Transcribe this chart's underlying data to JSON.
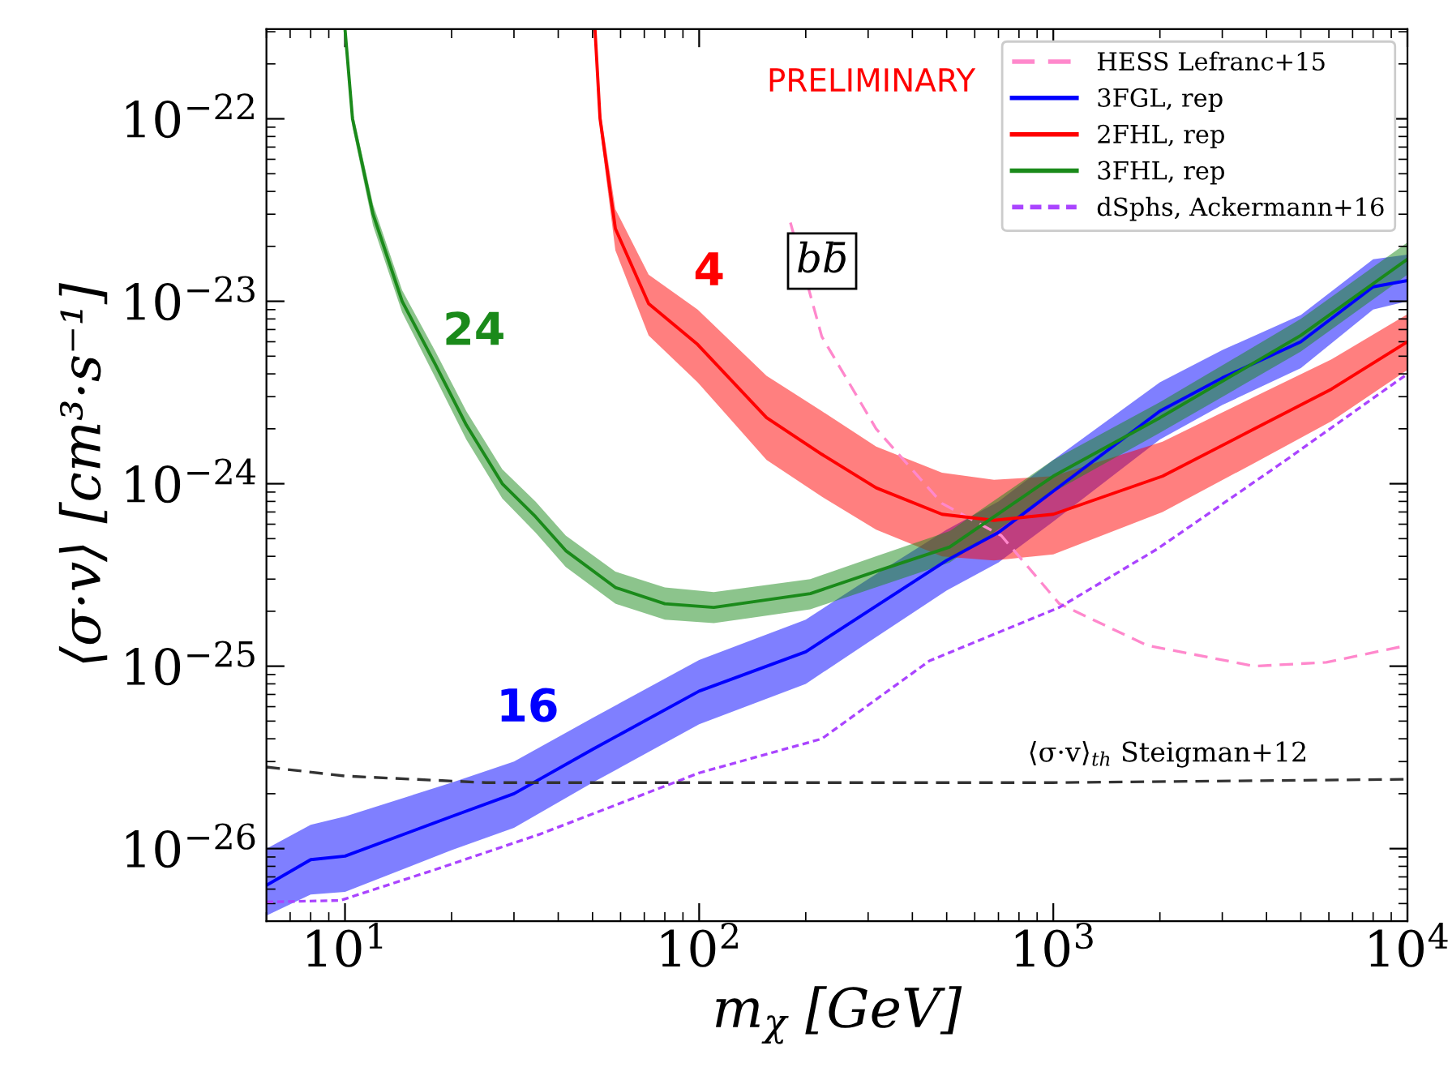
{
  "chart_data": {
    "type": "line",
    "xlabel": "m$_{χ}$ [GeV]",
    "ylabel": "⟨σ·v⟩ [cm³·s⁻¹]",
    "log": "xy",
    "xlim": [
      6,
      10000
    ],
    "ylim": [
      4e-27,
      3.1e-22
    ],
    "xticks": [
      {
        "value": 10,
        "label": "10$^{1}$"
      },
      {
        "value": 100,
        "label": "10$^{2}$"
      },
      {
        "value": 1000,
        "label": "10$^{3}$"
      },
      {
        "value": 10000,
        "label": "10$^{4}$"
      }
    ],
    "yticks": [
      {
        "value": 1e-26,
        "label": "10$^{−26}$"
      },
      {
        "value": 1e-25,
        "label": "10$^{−25}$"
      },
      {
        "value": 1e-24,
        "label": "10$^{−24}$"
      },
      {
        "value": 1e-23,
        "label": "10$^{−23}$"
      },
      {
        "value": 1e-22,
        "label": "10$^{−22}$"
      }
    ],
    "grid": false,
    "legend": "top right",
    "marker": "none",
    "series": [
      {
        "name": "HESS Lefranc+15",
        "color": "#ff88cc",
        "line_style": "dashed",
        "x": [
          181,
          222,
          316,
          485,
          713,
          1040,
          1840,
          3700,
          5900,
          10000
        ],
        "values": [
          2.7e-23,
          6.4e-24,
          2e-24,
          7.8e-25,
          5.2e-25,
          2.2e-25,
          1.3e-25,
          1e-25,
          1.05e-25,
          1.3e-25
        ]
      },
      {
        "name": "3FGL, rep",
        "color": "#0000ff",
        "line_style": "solid",
        "x": [
          6,
          8,
          10,
          20,
          30,
          50,
          100,
          200,
          300,
          500,
          700,
          1000,
          2000,
          3000,
          5000,
          8000,
          10000
        ],
        "values": [
          6.3e-27,
          8.7e-27,
          9.1e-27,
          1.5e-26,
          2e-26,
          3.5e-26,
          7.3e-26,
          1.2e-25,
          2e-25,
          3.8e-25,
          5.4e-25,
          9.1e-25,
          2.5e-24,
          3.8e-24,
          6e-24,
          1.2e-23,
          1.3e-23
        ],
        "upper": [
          1e-26,
          1.35e-26,
          1.5e-26,
          2.3e-26,
          3e-26,
          5.2e-26,
          1.08e-25,
          1.8e-25,
          3e-25,
          5.6e-25,
          8e-25,
          1.35e-24,
          3.6e-24,
          5.4e-24,
          8.4e-24,
          1.7e-23,
          1.8e-23
        ],
        "lower": [
          4.3e-27,
          5.6e-27,
          5.8e-27,
          9.8e-27,
          1.3e-26,
          2.3e-26,
          4.8e-26,
          8e-26,
          1.35e-25,
          2.6e-25,
          3.7e-25,
          6.2e-25,
          1.75e-24,
          2.7e-24,
          4.3e-24,
          9e-24,
          1e-23
        ]
      },
      {
        "name": "2FHL, rep",
        "color": "#ff0000",
        "line_style": "solid",
        "x": [
          50.8,
          52.5,
          58,
          72,
          99,
          155,
          222,
          316,
          485,
          680,
          1000,
          2035,
          3700,
          6100,
          10000
        ],
        "values": [
          3.1e-22,
          1e-22,
          2.5e-23,
          9.7e-24,
          5.8e-24,
          2.3e-24,
          1.45e-24,
          9.5e-25,
          6.8e-25,
          6.3e-25,
          6.8e-25,
          1.1e-24,
          2e-24,
          3.3e-24,
          6e-24
        ],
        "upper": [
          3.1e-22,
          1.15e-22,
          3.2e-23,
          1.4e-23,
          9e-24,
          3.9e-24,
          2.5e-24,
          1.6e-24,
          1.15e-24,
          1.05e-24,
          1.1e-24,
          1.7e-24,
          3e-24,
          4.8e-24,
          8.5e-24
        ],
        "lower": [
          2.9e-22,
          8.8e-23,
          1.9e-23,
          6.5e-24,
          3.6e-24,
          1.35e-24,
          8.5e-25,
          5.6e-25,
          4e-25,
          3.8e-25,
          4.1e-25,
          7e-25,
          1.3e-24,
          2.2e-24,
          4.2e-24
        ]
      },
      {
        "name": "3FHL, rep",
        "color": "#1a8a1a",
        "line_style": "solid",
        "x": [
          10,
          10.5,
          12,
          14.5,
          18,
          22,
          27.8,
          34.5,
          42,
          58,
          80,
          110,
          206,
          315,
          510,
          1000,
          2000,
          5000,
          10000
        ],
        "values": [
          3.1e-22,
          1e-22,
          3e-23,
          1e-23,
          4.5e-24,
          2.1e-24,
          1e-24,
          6.6e-25,
          4.3e-25,
          2.7e-25,
          2.2e-25,
          2.1e-25,
          2.5e-25,
          3.3e-25,
          4.5e-25,
          1.1e-24,
          2.3e-24,
          6.5e-24,
          1.7e-23
        ],
        "upper": [
          3.1e-22,
          1.1e-22,
          3.4e-23,
          1.15e-23,
          5.3e-24,
          2.5e-24,
          1.2e-24,
          8e-25,
          5.2e-25,
          3.3e-25,
          2.7e-25,
          2.55e-25,
          3e-25,
          4e-25,
          5.5e-25,
          1.35e-24,
          2.8e-24,
          8e-24,
          2.1e-23
        ],
        "lower": [
          2.8e-22,
          9e-23,
          2.6e-23,
          8.7e-24,
          3.8e-24,
          1.75e-24,
          8.3e-25,
          5.4e-25,
          3.5e-25,
          2.2e-25,
          1.8e-25,
          1.72e-25,
          2.05e-25,
          2.7e-25,
          3.7e-25,
          9e-25,
          1.9e-24,
          5.3e-24,
          1.4e-23
        ]
      },
      {
        "name": "dSphs, Ackermann+16",
        "color": "#aa44ff",
        "line_style": "dotted",
        "x": [
          6,
          9.7,
          17.7,
          35.5,
          100,
          222,
          447,
          1040,
          1970,
          4420,
          10000
        ],
        "values": [
          5.1e-27,
          5.2e-27,
          7.6e-27,
          1.2e-26,
          2.6e-26,
          4e-26,
          1.07e-25,
          2.1e-25,
          4.4e-25,
          1.3e-24,
          4e-24
        ]
      },
      {
        "color": "#333333",
        "line_style": "dashed",
        "x": [
          6,
          10,
          25,
          100,
          1000,
          10000
        ],
        "values": [
          2.8e-26,
          2.5e-26,
          2.3e-26,
          2.3e-26,
          2.3e-26,
          2.4e-26
        ]
      }
    ],
    "annotations": [
      "PRELIMINARY",
      "bb̄",
      "24",
      "4",
      "16",
      "⟨σ·v⟩$_{th}$ Steigman+12"
    ]
  }
}
